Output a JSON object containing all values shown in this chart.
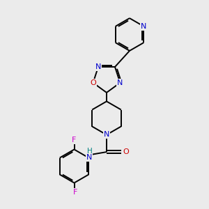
{
  "bg_color": "#ebebeb",
  "bond_color": "#000000",
  "atom_colors": {
    "N": "#0000cc",
    "O": "#cc0000",
    "F": "#cc00cc",
    "NH": "#008080",
    "C": "#000000"
  },
  "lw": 1.4,
  "fs": 8.0
}
